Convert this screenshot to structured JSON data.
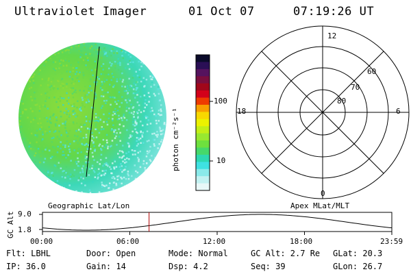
{
  "header": {
    "instrument": "Ultraviolet Imager",
    "date": "01 Oct 07",
    "time": "07:19:26 UT"
  },
  "colorbar": {
    "unit": "photon cm⁻²s⁻¹",
    "ticks": [
      "100",
      "10"
    ],
    "colors": [
      "#0b0b2a",
      "#2a0f55",
      "#55135e",
      "#7a0e3e",
      "#a1071a",
      "#d3001a",
      "#ee3b00",
      "#f8a000",
      "#f8d800",
      "#ecf200",
      "#c3ef17",
      "#98e830",
      "#6ee03e",
      "#46d86a",
      "#2ed8b0",
      "#3fe1e1",
      "#8aeaea",
      "#c2f2f2",
      "#e8f8f8"
    ]
  },
  "polar_grid": {
    "mlt_labels": {
      "top": "12",
      "left": "18",
      "right": "6",
      "bottom": "0"
    },
    "lat_labels": [
      "60",
      "70",
      "80"
    ]
  },
  "timeline": {
    "left_label": "Geographic Lat/Lon",
    "right_label": "Apex MLat/MLT",
    "axis_title": "GC Alt",
    "y_ticks": [
      "9.0",
      "1.8"
    ],
    "x_ticks": [
      "00:00",
      "06:00",
      "12:00",
      "18:00",
      "23:59"
    ],
    "marker_fraction": 0.3051
  },
  "info": {
    "flt": "Flt: LBHL",
    "door": "Door: Open",
    "mode": "Mode: Normal",
    "gcalt": "GC Alt: 2.7 Re",
    "glat": "GLat:  20.3",
    "ip": "IP: 36.0",
    "gain": "Gain: 14",
    "dsp": "Dsp:     4.2",
    "seq": "Seq: 39",
    "glon": "GLon:  26.7"
  }
}
